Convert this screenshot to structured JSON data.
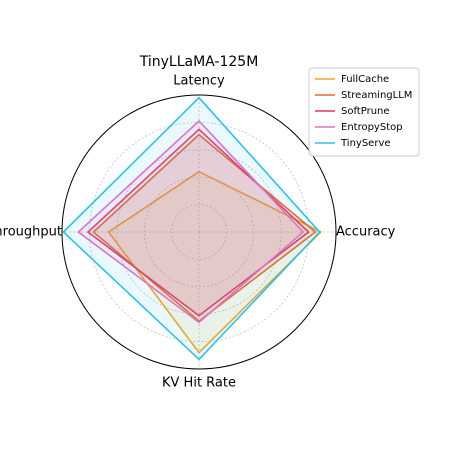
{
  "chart_data": {
    "type": "radar",
    "title": "TinyLLaMA-125M",
    "categories": [
      "Latency",
      "Accuracy",
      "KV Hit Rate",
      "Throughput"
    ],
    "rlim": [
      0,
      1
    ],
    "rticks": [
      0.2,
      0.4,
      0.6,
      0.8
    ],
    "grid": true,
    "legend": "upper right",
    "series": [
      {
        "name": "FullCache",
        "color": "#f5a623",
        "values": [
          0.44,
          0.89,
          0.88,
          0.66
        ]
      },
      {
        "name": "StreamingLLM",
        "color": "#e8692a",
        "values": [
          0.71,
          0.85,
          0.65,
          0.77
        ]
      },
      {
        "name": "SoftPrune",
        "color": "#e8365d",
        "values": [
          0.75,
          0.8,
          0.61,
          0.81
        ]
      },
      {
        "name": "EntropyStop",
        "color": "#f06bbf",
        "values": [
          0.81,
          0.76,
          0.66,
          0.88
        ]
      },
      {
        "name": "TinyServe",
        "color": "#2ec0e8",
        "values": [
          0.98,
          0.88,
          0.93,
          0.99
        ]
      }
    ]
  }
}
